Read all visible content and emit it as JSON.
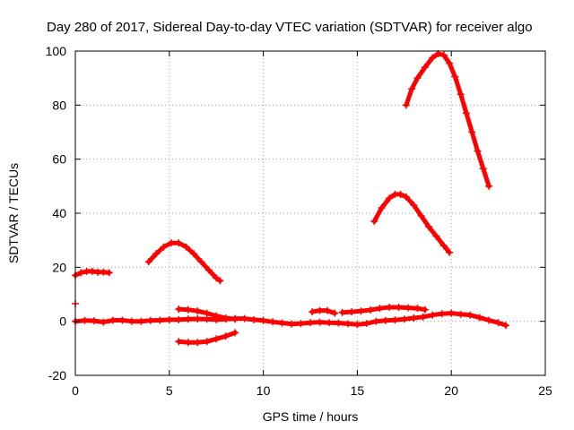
{
  "chart_data": {
    "type": "scatter",
    "title": "Day 280 of 2017, Sidereal Day-to-day VTEC variation (SDTVAR) for receiver algo",
    "xlabel": "GPS time / hours",
    "ylabel": "SDTVAR / TECUs",
    "xlim": [
      0,
      25
    ],
    "ylim": [
      -20,
      100
    ],
    "xticks": [
      "0",
      "5",
      "10",
      "15",
      "20",
      "25"
    ],
    "yticks": [
      "-20",
      "0",
      "20",
      "40",
      "60",
      "80",
      "100"
    ],
    "grid": true,
    "marker": "+",
    "series_color": "#ff0000",
    "series": [
      {
        "name": "arc1",
        "x": [
          0.0,
          0.3,
          0.6,
          0.9,
          1.2,
          1.5,
          1.8
        ],
        "y": [
          17,
          18,
          18.5,
          18.5,
          18.2,
          18.2,
          18
        ]
      },
      {
        "name": "arc2",
        "x": [
          0.0
        ],
        "y": [
          6.5
        ]
      },
      {
        "name": "arc3",
        "x": [
          3.9,
          4.3,
          4.7,
          5.1,
          5.5,
          5.9,
          6.3,
          6.7,
          7.1,
          7.5,
          7.7
        ],
        "y": [
          22,
          25,
          27.5,
          29,
          29,
          27.5,
          25,
          22,
          19,
          16,
          15
        ]
      },
      {
        "name": "arc4",
        "x": [
          0.0,
          0.5,
          1.0,
          1.5,
          2.0,
          2.5,
          3.0,
          3.5,
          4.0,
          4.5,
          5.0,
          5.5,
          6.0,
          6.5,
          7.0,
          7.5,
          8.0,
          8.5,
          9.0,
          9.5,
          10.0,
          10.5,
          11.0,
          11.5,
          12.0,
          12.5,
          13.0,
          13.5,
          14.0,
          14.5,
          15.0,
          15.5,
          16.0,
          16.5,
          17.0,
          17.5,
          18.0,
          18.5,
          19.0,
          19.5,
          20.0,
          20.5,
          21.0,
          21.5,
          22.0,
          22.5,
          22.9
        ],
        "y": [
          0,
          0.3,
          0.2,
          -0.3,
          0.4,
          0.4,
          0,
          0,
          0.3,
          0.4,
          0.6,
          0.6,
          0.8,
          0.9,
          0.8,
          0.6,
          0.8,
          1.0,
          1.0,
          0.6,
          0.3,
          -0.2,
          -0.6,
          -1,
          -0.8,
          -0.5,
          -0.3,
          -0.5,
          -0.6,
          -0.9,
          -1.2,
          -0.8,
          0,
          0.3,
          0.5,
          0.8,
          1.2,
          1.6,
          2.3,
          2.8,
          3,
          2.6,
          2.3,
          1.4,
          0.4,
          -0.5,
          -1.5
        ]
      },
      {
        "name": "arc5",
        "x": [
          5.5,
          6.0,
          6.5,
          7.0,
          7.5,
          8.0,
          8.5
        ],
        "y": [
          4.5,
          4.3,
          3.8,
          3.0,
          2.0,
          1.2,
          0.8
        ]
      },
      {
        "name": "arc6",
        "x": [
          5.5,
          6.0,
          6.5,
          7.0,
          7.5,
          8.0,
          8.5
        ],
        "y": [
          -7.5,
          -7.8,
          -7.8,
          -7.5,
          -6.5,
          -5.5,
          -4.2
        ]
      },
      {
        "name": "arc7",
        "x": [
          12.6,
          13.0,
          13.4,
          13.8
        ],
        "y": [
          3.5,
          4,
          4,
          3
        ]
      },
      {
        "name": "arc8",
        "x": [
          14.2,
          14.7,
          15.2,
          15.7,
          16.2,
          16.7,
          17.2,
          17.7,
          18.2,
          18.6
        ],
        "y": [
          3.3,
          3.5,
          3.8,
          4.2,
          4.8,
          5.2,
          5.2,
          5.0,
          4.8,
          4.3
        ]
      },
      {
        "name": "arc9",
        "x": [
          15.9,
          16.3,
          16.7,
          17.0,
          17.3,
          17.6,
          18.0,
          18.4,
          18.8,
          19.2,
          19.6,
          19.9
        ],
        "y": [
          37,
          42,
          45.5,
          47,
          47,
          46,
          43,
          39,
          35,
          31.5,
          28,
          25.5
        ]
      },
      {
        "name": "arc10",
        "x": [
          17.6,
          17.9,
          18.2,
          18.6,
          19.0,
          19.3,
          19.6,
          19.9,
          20.2,
          20.5,
          20.8,
          21.1,
          21.4,
          21.7,
          22.0
        ],
        "y": [
          80,
          86,
          90,
          94,
          97.5,
          99,
          98.5,
          95.5,
          90.5,
          84,
          77,
          70,
          63,
          56.5,
          50
        ]
      }
    ]
  }
}
